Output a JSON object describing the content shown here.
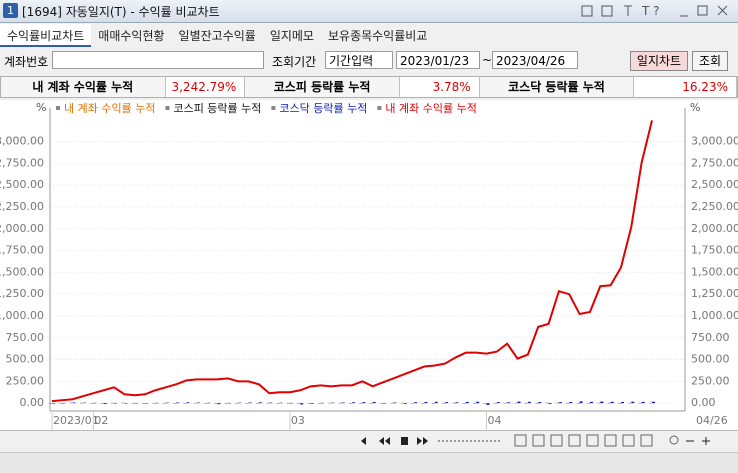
{
  "window": {
    "badge": "1",
    "title": "[1694] 자동일지(T) - 수익률 비교차트"
  },
  "tabs": [
    "수익률비교차트",
    "매매수익현황",
    "일별잔고수익률",
    "일지메모",
    "보유종목수익률비교"
  ],
  "form": {
    "account_label": "계좌번호",
    "period_label": "조회기간",
    "period_mode": "기간입력",
    "start": "2023/01/23",
    "separator": "~",
    "end": "2023/04/26",
    "chart_button": "일지차트",
    "search_button": "조회"
  },
  "summary": [
    {
      "label": "내 계좌 수익률 누적",
      "value": "3,242.79%"
    },
    {
      "label": "코스피 등락률 누적",
      "value": "3.78%"
    },
    {
      "label": "코스닥 등락률 누적",
      "value": "16.23%"
    }
  ],
  "chart_data": {
    "type": "line",
    "y_unit": "%",
    "legend": [
      {
        "name": "내 계좌 수익률 누적",
        "color": "#e07000"
      },
      {
        "name": "코스피 등락률 누적",
        "color": "#111111"
      },
      {
        "name": "코스닥 등락률 누적",
        "color": "#1020b0"
      },
      {
        "name": "내 계좌 수익률 누적",
        "color": "#e00000"
      }
    ],
    "categories": [
      "2023/01",
      null,
      null,
      null,
      "02",
      null,
      null,
      null,
      null,
      null,
      null,
      null,
      null,
      null,
      null,
      null,
      null,
      null,
      null,
      null,
      null,
      null,
      null,
      "03",
      null,
      null,
      null,
      null,
      null,
      null,
      null,
      null,
      null,
      null,
      null,
      null,
      null,
      null,
      null,
      null,
      null,
      null,
      "04",
      null,
      null,
      null,
      null,
      null,
      null,
      null,
      null,
      null,
      null,
      null,
      null,
      null,
      null,
      null,
      "04/26"
    ],
    "series": [
      {
        "type": "line",
        "color": "#e00000",
        "values": [
          23,
          34,
          45,
          80,
          114,
          148,
          182,
          102,
          91,
          102,
          148,
          182,
          216,
          261,
          273,
          273,
          273,
          284,
          250,
          250,
          216,
          114,
          125,
          125,
          148,
          193,
          204,
          193,
          204,
          204,
          250,
          193,
          239,
          284,
          329,
          375,
          420,
          432,
          454,
          523,
          579,
          579,
          568,
          591,
          682,
          511,
          557,
          875,
          909,
          1284,
          1250,
          1022,
          1045,
          1341,
          1352,
          1556,
          2022,
          2760,
          3242.79
        ]
      },
      {
        "type": "bar",
        "color": "#d0307a",
        "values": [
          0,
          2,
          5,
          3,
          1,
          -2,
          4,
          6,
          3,
          2,
          1,
          0,
          -1,
          2,
          3,
          1,
          -3,
          -2,
          0,
          1,
          2,
          3,
          -1,
          -2,
          0,
          1,
          2,
          4,
          3,
          1,
          0,
          -1,
          2,
          3,
          4,
          2,
          1,
          0,
          2,
          3,
          1,
          -1,
          0,
          2,
          3,
          4,
          3,
          2,
          5,
          4,
          3,
          2,
          3,
          4,
          3,
          2,
          3,
          4,
          3.78
        ]
      },
      {
        "type": "bar",
        "color": "#1020b0",
        "values": [
          0,
          3,
          8,
          6,
          4,
          -10,
          2,
          -5,
          -3,
          1,
          4,
          6,
          8,
          10,
          7,
          5,
          -12,
          3,
          6,
          8,
          10,
          7,
          5,
          3,
          -15,
          -8,
          4,
          6,
          8,
          10,
          12,
          14,
          -6,
          8,
          -9,
          11,
          13,
          15,
          12,
          10,
          14,
          16,
          -20,
          12,
          10,
          18,
          15,
          13,
          -10,
          12,
          14,
          20,
          15,
          18,
          16,
          14,
          17,
          15,
          16.23
        ]
      }
    ],
    "ylim": [
      -90,
      3385
    ],
    "yticks": [
      {
        "value": 0,
        "label": "0.00"
      },
      {
        "value": 250,
        "label": "250.00"
      },
      {
        "value": 500,
        "label": "500.00"
      },
      {
        "value": 750,
        "label": "750.00"
      },
      {
        "value": 1000,
        "label": "1,000.00"
      },
      {
        "value": 1250,
        "label": "1,250.00"
      },
      {
        "value": 1500,
        "label": "1,500.00"
      },
      {
        "value": 1750,
        "label": "1,750.00"
      },
      {
        "value": 2000,
        "label": "2,000.00"
      },
      {
        "value": 2250,
        "label": "2,250.00"
      },
      {
        "value": 2500,
        "label": "2,500.00"
      },
      {
        "value": 2750,
        "label": "2,750.00"
      },
      {
        "value": 3000,
        "label": "3,000.00"
      }
    ],
    "grid": true
  }
}
